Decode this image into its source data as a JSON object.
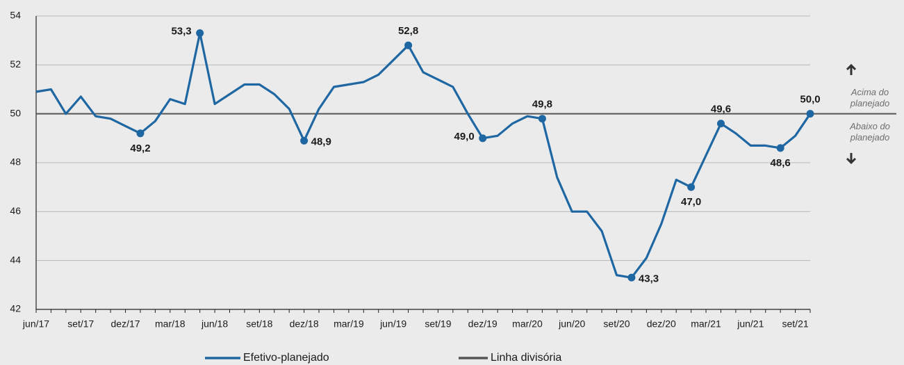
{
  "chart_data": {
    "type": "line",
    "categories": [
      "jun/17",
      null,
      null,
      "set/17",
      null,
      null,
      "dez/17",
      null,
      null,
      "mar/18",
      null,
      null,
      "jun/18",
      null,
      null,
      "set/18",
      null,
      null,
      "dez/18",
      null,
      null,
      "mar/19",
      null,
      null,
      "jun/19",
      null,
      null,
      "set/19",
      null,
      null,
      "dez/19",
      null,
      null,
      "mar/20",
      null,
      null,
      "jun/20",
      null,
      null,
      "set/20",
      null,
      null,
      "dez/20",
      null,
      null,
      "mar/21",
      null,
      null,
      "jun/21",
      null,
      null,
      "set/21",
      null
    ],
    "series": [
      {
        "name": "Efetivo-planejado",
        "color": "#1f67a3",
        "values": [
          50.9,
          51.0,
          50.0,
          50.7,
          49.9,
          49.8,
          49.5,
          49.2,
          49.7,
          50.6,
          50.4,
          53.3,
          50.4,
          50.8,
          51.2,
          51.2,
          50.8,
          50.2,
          48.9,
          50.2,
          51.1,
          51.2,
          51.3,
          51.6,
          52.2,
          52.8,
          51.7,
          51.4,
          51.1,
          50.0,
          49.0,
          49.1,
          49.6,
          49.9,
          49.8,
          47.4,
          46.0,
          46.0,
          45.2,
          43.4,
          43.3,
          44.1,
          45.5,
          47.3,
          47.0,
          48.3,
          49.6,
          49.2,
          48.7,
          48.7,
          48.6,
          49.1,
          50.0
        ],
        "value_labels": [
          null,
          null,
          null,
          null,
          null,
          null,
          null,
          "49,2",
          null,
          null,
          null,
          "53,3",
          null,
          null,
          null,
          null,
          null,
          null,
          "48,9",
          null,
          null,
          null,
          null,
          null,
          null,
          "52,8",
          null,
          null,
          null,
          null,
          "49,0",
          null,
          null,
          null,
          "49,8",
          null,
          null,
          null,
          null,
          null,
          "43,3",
          null,
          null,
          null,
          "47,0",
          null,
          "49,6",
          null,
          null,
          null,
          "48,6",
          null,
          "50,0"
        ]
      }
    ],
    "reference_line": {
      "name": "Linha divisória",
      "value": 50,
      "color": "#555555"
    },
    "annotations": {
      "above": [
        "Acima do",
        "planejado"
      ],
      "below": [
        "Abaixo do",
        "planejado"
      ]
    },
    "ylim": [
      42,
      54
    ],
    "yticks": [
      42,
      44,
      46,
      48,
      50,
      52,
      54
    ],
    "grid": true
  }
}
